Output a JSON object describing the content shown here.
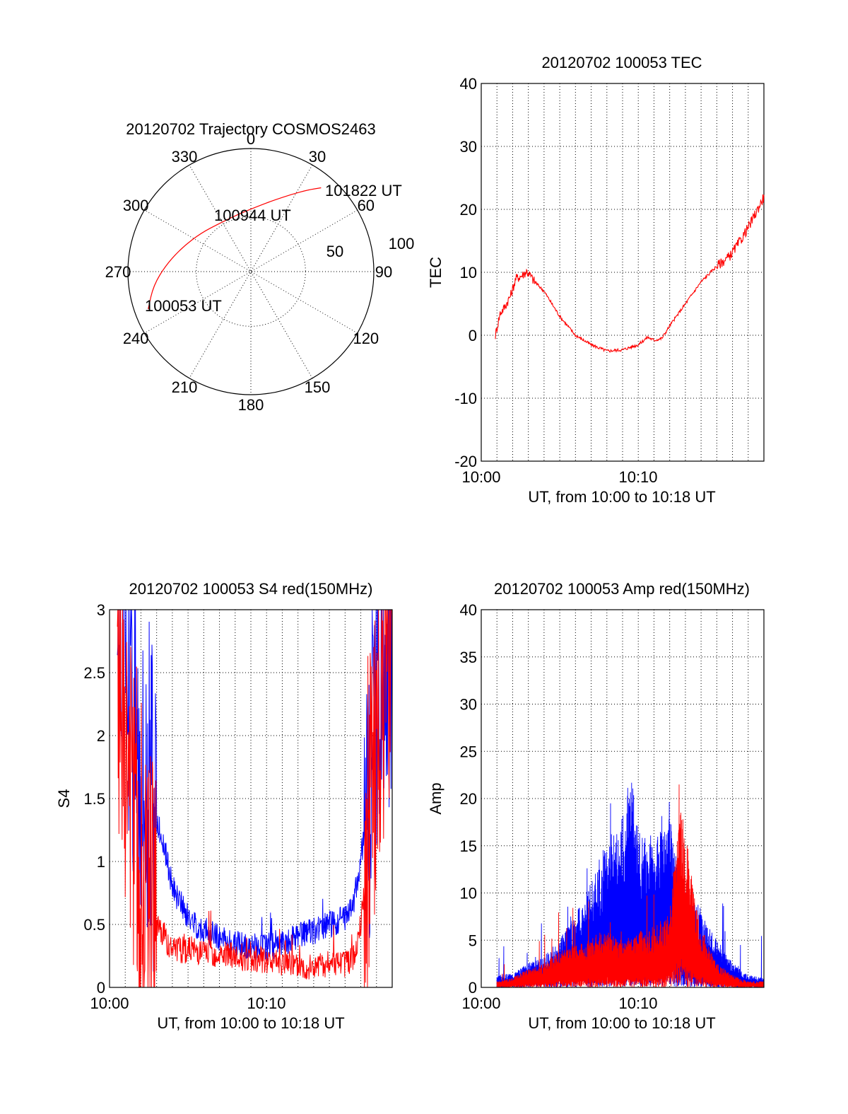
{
  "colors": {
    "red": "#ff0000",
    "blue": "#0000ff",
    "axis": "#000000"
  },
  "chart_data": [
    {
      "type": "polar",
      "title": "20120702 Trajectory COSMOS2463",
      "angle_labels": [
        "0",
        "30",
        "60",
        "90",
        "120",
        "150",
        "180",
        "210",
        "240",
        "270",
        "300",
        "330"
      ],
      "radial_labels": [
        "50",
        "100"
      ],
      "trajectory": {
        "points": [
          {
            "az": 250,
            "el": 10
          },
          {
            "az": 262,
            "el": 18
          },
          {
            "az": 275,
            "el": 28
          },
          {
            "az": 290,
            "el": 37
          },
          {
            "az": 308,
            "el": 44
          },
          {
            "az": 328,
            "el": 48
          },
          {
            "az": 348,
            "el": 47
          },
          {
            "az": 6,
            "el": 42
          },
          {
            "az": 18,
            "el": 35
          },
          {
            "az": 28,
            "el": 26
          },
          {
            "az": 35,
            "el": 17
          },
          {
            "az": 40,
            "el": 10
          }
        ],
        "annotations": [
          "101822 UT",
          "100944 UT",
          "100053 UT"
        ]
      }
    },
    {
      "type": "line",
      "title": "20120702 100053 TEC",
      "xlabel": "UT, from 10:00 to 10:18 UT",
      "ylabel": "TEC",
      "xlim": [
        0,
        18
      ],
      "ylim": [
        -20,
        40
      ],
      "yticks": [
        "-20",
        "-10",
        "0",
        "10",
        "20",
        "30",
        "40"
      ],
      "xticks": [
        "10:00",
        "10:10"
      ],
      "grid": true,
      "series": [
        {
          "color": "red",
          "x": [
            0.9,
            1.2,
            1.5,
            1.9,
            2.2,
            2.6,
            2.9,
            3.4,
            4,
            5,
            6,
            7,
            8,
            9,
            10,
            10.6,
            11,
            11.5,
            12,
            13,
            14,
            15,
            15.8,
            16.5,
            17.2,
            18
          ],
          "y": [
            0,
            3.5,
            4.5,
            6.5,
            9,
            9.5,
            10.2,
            8.5,
            7,
            3,
            0,
            -1.5,
            -2.5,
            -2.3,
            -1.5,
            -0.3,
            -0.8,
            -0.5,
            1.5,
            5,
            8.5,
            11,
            12.5,
            15,
            18,
            22
          ]
        }
      ]
    },
    {
      "type": "line",
      "title": "20120702 100053 S4 red(150MHz)",
      "xlabel": "UT, from 10:00 to 10:18 UT",
      "ylabel": "S4",
      "xlim": [
        0,
        18
      ],
      "ylim": [
        0,
        3
      ],
      "yticks": [
        "0",
        "0.5",
        "1",
        "1.5",
        "2",
        "2.5",
        "3"
      ],
      "xticks": [
        "10:00",
        "10:10"
      ],
      "grid": true,
      "series": [
        {
          "color": "blue",
          "x": [
            0.5,
            1,
            1.5,
            2,
            2.5,
            3,
            3.5,
            4,
            5,
            6,
            7,
            8,
            9,
            10,
            11,
            12,
            13,
            14,
            15,
            15.5,
            16,
            16.5,
            17,
            17.5,
            18
          ],
          "y": [
            3,
            2.6,
            2.2,
            1.9,
            1.6,
            1.3,
            1.1,
            0.8,
            0.55,
            0.45,
            0.4,
            0.35,
            0.33,
            0.32,
            0.35,
            0.4,
            0.45,
            0.5,
            0.55,
            0.65,
            1,
            1.6,
            2.3,
            2.6,
            2.8
          ]
        },
        {
          "color": "red",
          "x": [
            0.5,
            1,
            1.5,
            2,
            2.5,
            3,
            3.5,
            4,
            5,
            6,
            7,
            8,
            9,
            10,
            11,
            12,
            13,
            14,
            15,
            15.5,
            16,
            16.5,
            17,
            17.5,
            18
          ],
          "y": [
            2.5,
            2,
            1.5,
            1,
            0.7,
            0.5,
            0.4,
            0.3,
            0.3,
            0.28,
            0.26,
            0.25,
            0.23,
            0.22,
            0.2,
            0.18,
            0.17,
            0.16,
            0.18,
            0.22,
            0.5,
            1.2,
            2,
            2.5,
            2.8
          ]
        }
      ]
    },
    {
      "type": "line",
      "title": "20120702 100053 Amp red(150MHz)",
      "xlabel": "UT, from 10:00 to 10:18 UT",
      "ylabel": "Amp",
      "xlim": [
        0,
        18
      ],
      "ylim": [
        0,
        40
      ],
      "yticks": [
        "0",
        "5",
        "10",
        "15",
        "20",
        "25",
        "30",
        "35",
        "40"
      ],
      "xticks": [
        "10:00",
        "10:10"
      ],
      "grid": true,
      "series": [
        {
          "color": "blue",
          "x": [
            1,
            2,
            3,
            4,
            5,
            6,
            7,
            8,
            9,
            9.5,
            10,
            11,
            12,
            12.5,
            13,
            13.5,
            14,
            15,
            16,
            17,
            18
          ],
          "y": [
            1,
            1.2,
            2,
            2.5,
            4,
            6,
            9,
            12,
            14,
            18,
            13,
            12,
            14,
            10,
            8,
            7,
            6,
            4,
            2,
            1,
            0.8
          ]
        },
        {
          "color": "red",
          "x": [
            1,
            2,
            3,
            4,
            5,
            6,
            7,
            8,
            9,
            10,
            11,
            12,
            12.6,
            13,
            13.5,
            14,
            15,
            16,
            17,
            18
          ],
          "y": [
            0.5,
            0.8,
            1.5,
            2,
            3,
            3.5,
            4,
            4.5,
            4,
            4.5,
            5,
            6,
            15,
            13,
            8,
            5,
            2,
            1,
            0.5,
            0.5
          ]
        }
      ]
    }
  ]
}
